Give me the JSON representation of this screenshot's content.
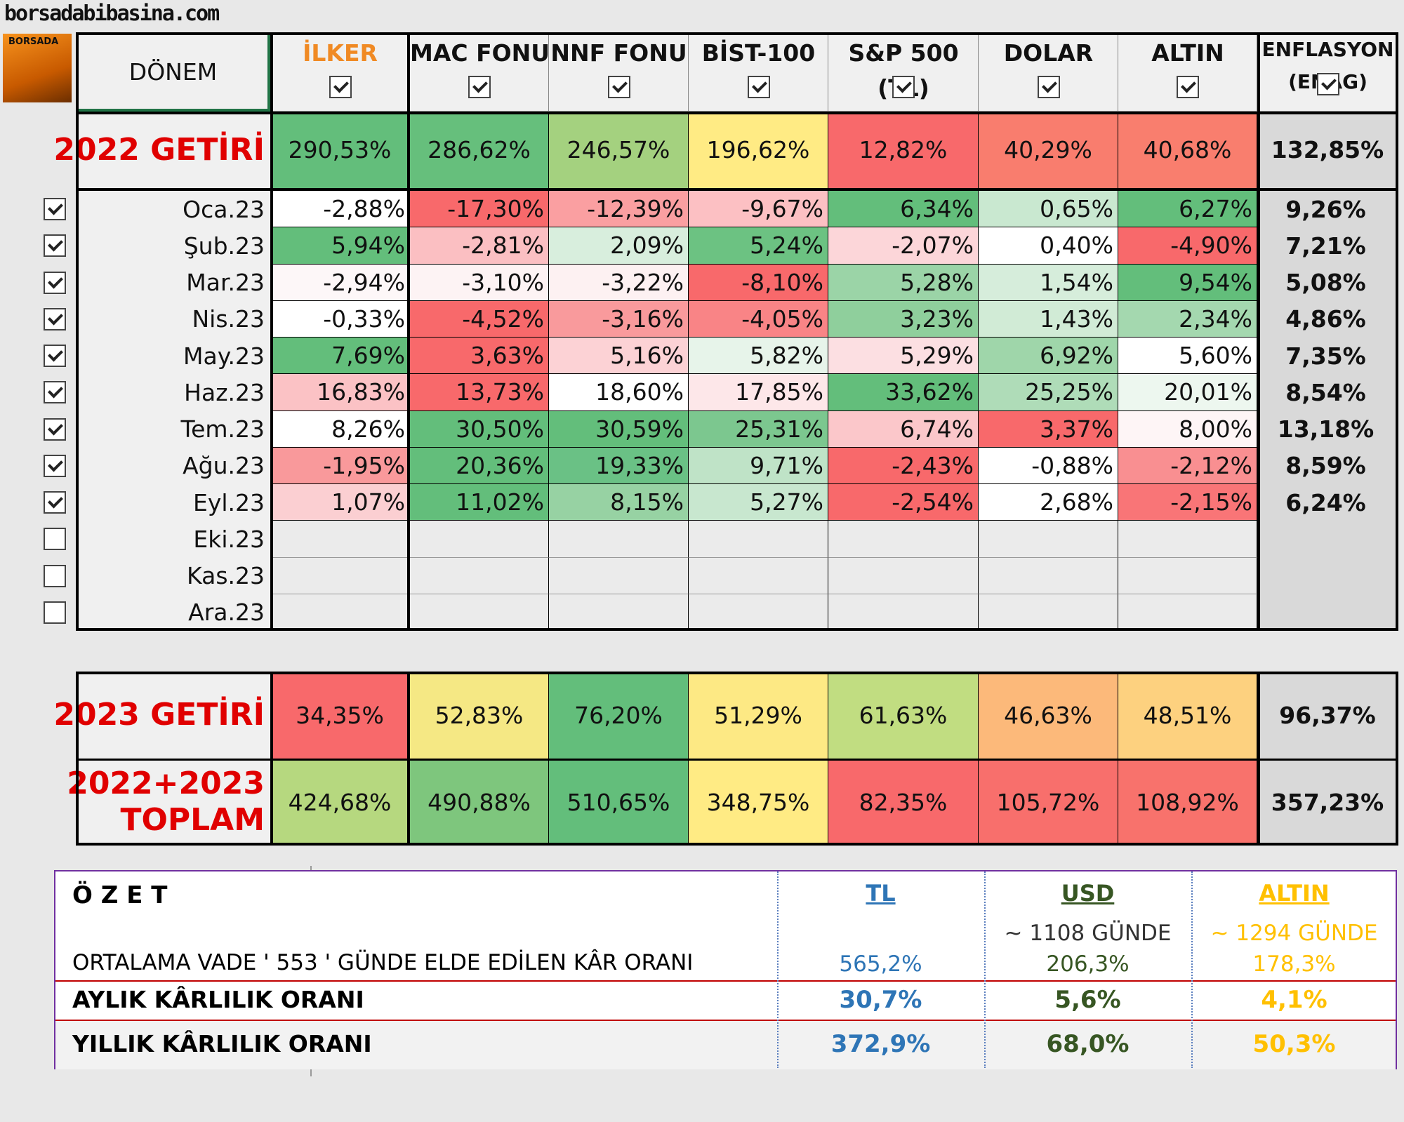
{
  "site": "borsadabibasina.com",
  "logo": "BORSADA",
  "table": {
    "period_header": "DÖNEM",
    "columns": [
      {
        "name": "İLKER",
        "checked": true
      },
      {
        "name": "MAC FONU",
        "checked": true
      },
      {
        "name": "NNF FONU",
        "checked": true
      },
      {
        "name": "BİST-100",
        "checked": true
      },
      {
        "name": "S&P 500",
        "sub": "(TL)",
        "checked": true
      },
      {
        "name": "DOLAR",
        "checked": true
      },
      {
        "name": "ALTIN",
        "checked": true
      },
      {
        "name": "ENFLASYON",
        "sub": "(ENAG)",
        "checked": true
      }
    ],
    "year_2022": {
      "label": "2022 GETİRİ",
      "values": [
        "290,53%",
        "286,62%",
        "246,57%",
        "196,62%",
        "12,82%",
        "40,29%",
        "40,68%",
        "132,85%"
      ],
      "colors": [
        "#63be7b",
        "#66bf7c",
        "#a4d17f",
        "#ffeb84",
        "#f8696b",
        "#f97d6e",
        "#f97e6e"
      ]
    },
    "months": [
      {
        "label": "Oca.23",
        "checked": true,
        "values": [
          "-2,88%",
          "-17,30%",
          "-12,39%",
          "-9,67%",
          "6,34%",
          "0,65%",
          "6,27%",
          "9,26%"
        ],
        "colors": [
          "#ffffff",
          "#f8696b",
          "#fa9fa1",
          "#fcc0c3",
          "#63be7b",
          "#c9e8d0",
          "#63be7b"
        ]
      },
      {
        "label": "Şub.23",
        "checked": true,
        "values": [
          "5,94%",
          "-2,81%",
          "2,09%",
          "5,24%",
          "-2,07%",
          "0,40%",
          "-4,90%",
          "7,21%"
        ],
        "colors": [
          "#63be7b",
          "#fbbfc2",
          "#d8eedd",
          "#6cc282",
          "#fcd6d9",
          "#ffffff",
          "#f8696b"
        ]
      },
      {
        "label": "Mar.23",
        "checked": true,
        "values": [
          "-2,94%",
          "-3,10%",
          "-3,22%",
          "-8,10%",
          "5,28%",
          "1,54%",
          "9,54%",
          "5,08%"
        ],
        "colors": [
          "#fdf7f8",
          "#fdf3f4",
          "#fdf1f2",
          "#f8696b",
          "#9bd4a7",
          "#d6eddb",
          "#63be7b"
        ]
      },
      {
        "label": "Nis.23",
        "checked": true,
        "values": [
          "-0,33%",
          "-4,52%",
          "-3,16%",
          "-4,05%",
          "3,23%",
          "1,43%",
          "2,34%",
          "4,86%"
        ],
        "colors": [
          "#ffffff",
          "#f8696b",
          "#f99a9c",
          "#f98486",
          "#8fcf9c",
          "#d1ebd6",
          "#a4d8af"
        ]
      },
      {
        "label": "May.23",
        "checked": true,
        "values": [
          "7,69%",
          "3,63%",
          "5,16%",
          "5,82%",
          "5,29%",
          "6,92%",
          "5,60%",
          "7,35%"
        ],
        "colors": [
          "#63be7b",
          "#f8696b",
          "#fcd2d5",
          "#e7f4ea",
          "#fcdfe2",
          "#9fd6aa",
          "#ffffff"
        ]
      },
      {
        "label": "Haz.23",
        "checked": true,
        "values": [
          "16,83%",
          "13,73%",
          "18,60%",
          "17,85%",
          "33,62%",
          "25,25%",
          "20,01%",
          "8,54%"
        ],
        "colors": [
          "#fbc2c5",
          "#f8696b",
          "#ffffff",
          "#fde7e9",
          "#63be7b",
          "#afdcb8",
          "#edf7ef"
        ]
      },
      {
        "label": "Tem.23",
        "checked": true,
        "values": [
          "8,26%",
          "30,50%",
          "30,59%",
          "25,31%",
          "6,74%",
          "3,37%",
          "8,00%",
          "13,18%"
        ],
        "colors": [
          "#ffffff",
          "#63be7b",
          "#63be7b",
          "#7cc78f",
          "#fbc7ca",
          "#f8696b",
          "#fef5f6"
        ]
      },
      {
        "label": "Ağu.23",
        "checked": true,
        "values": [
          "-1,95%",
          "20,36%",
          "19,33%",
          "9,71%",
          "-2,43%",
          "-0,88%",
          "-2,12%",
          "8,59%"
        ],
        "colors": [
          "#f9999b",
          "#63be7b",
          "#6ac185",
          "#bfe3c7",
          "#f8696b",
          "#ffffff",
          "#f98f91"
        ]
      },
      {
        "label": "Eyl.23",
        "checked": true,
        "values": [
          "1,07%",
          "11,02%",
          "8,15%",
          "5,27%",
          "-2,54%",
          "2,68%",
          "-2,15%",
          "6,24%"
        ],
        "colors": [
          "#fbcfd2",
          "#63be7b",
          "#97d2a3",
          "#c8e7cf",
          "#f8696b",
          "#ffffff",
          "#f97577"
        ]
      },
      {
        "label": "Eki.23",
        "checked": false,
        "values": [],
        "colors": []
      },
      {
        "label": "Kas.23",
        "checked": false,
        "values": [],
        "colors": []
      },
      {
        "label": "Ara.23",
        "checked": false,
        "values": [],
        "colors": []
      }
    ],
    "year_2023": {
      "label": "2023 GETİRİ",
      "values": [
        "34,35%",
        "52,83%",
        "76,20%",
        "51,29%",
        "61,63%",
        "46,63%",
        "48,51%",
        "96,37%"
      ],
      "colors": [
        "#f8696b",
        "#f5e884",
        "#63be7b",
        "#fde984",
        "#c1dd81",
        "#fcb97a",
        "#fdd17f"
      ]
    },
    "total": {
      "label": [
        "2022+2023",
        "TOPLAM"
      ],
      "values": [
        "424,68%",
        "490,88%",
        "510,65%",
        "348,75%",
        "82,35%",
        "105,72%",
        "108,92%",
        "357,23%"
      ],
      "colors": [
        "#b6d87f",
        "#7ec67d",
        "#63be7b",
        "#ffeb84",
        "#f8696b",
        "#f86f6c",
        "#f8726c"
      ]
    }
  },
  "summary": {
    "title": "Ö Z E T",
    "headers": [
      "TL",
      "USD",
      "ALTIN"
    ],
    "days": [
      null,
      "~ 1108 GÜNDE",
      "~ 1294 GÜNDE"
    ],
    "rows": [
      {
        "label": "ORTALAMA VADE ' 553 ' GÜNDE ELDE EDİLEN KÂR ORANI",
        "values": [
          "565,2%",
          "206,3%",
          "178,3%"
        ]
      },
      {
        "label": "AYLIK KÂRLILIK ORANI",
        "values": [
          "30,7%",
          "5,6%",
          "4,1%"
        ]
      },
      {
        "label": "YILLIK KÂRLILIK ORANI",
        "values": [
          "372,9%",
          "68,0%",
          "50,3%"
        ]
      }
    ]
  }
}
